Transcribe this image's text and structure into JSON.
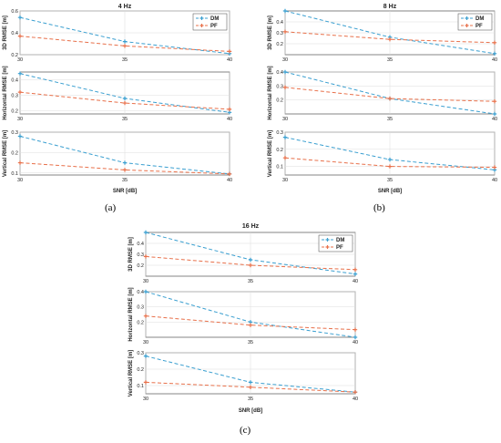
{
  "colors": {
    "dm": "#3a9fd0",
    "pf": "#e8704a"
  },
  "captions": [
    "(a)",
    "(b)",
    "(c)"
  ],
  "chart_data": [
    {
      "type": "line",
      "title": "4 Hz",
      "xlabel": "SNR [dB]",
      "legend": "top-right",
      "x": [
        30,
        35,
        40
      ],
      "x_ticks": [
        "30",
        "35",
        "40"
      ],
      "series_names": [
        "DM",
        "PF"
      ],
      "subplots": [
        {
          "ylabel": "3D RMSE [m]",
          "ylim": [
            0.2,
            0.6
          ],
          "y_ticks": [
            "0.2",
            "0.4",
            "0.6"
          ],
          "yvals": [
            0.2,
            0.4,
            0.6
          ],
          "series": [
            {
              "values": [
                0.54,
                0.32,
                0.21
              ]
            },
            {
              "values": [
                0.37,
                0.28,
                0.23
              ]
            }
          ]
        },
        {
          "ylabel": "Horizontal RMSE [m]",
          "ylim": [
            0.18,
            0.45
          ],
          "y_ticks": [
            "0.2",
            "0.3",
            "0.4"
          ],
          "yvals": [
            0.2,
            0.3,
            0.4
          ],
          "series": [
            {
              "values": [
                0.44,
                0.28,
                0.19
              ]
            },
            {
              "values": [
                0.32,
                0.25,
                0.21
              ]
            }
          ]
        },
        {
          "ylabel": "Vertical RMSE [m]",
          "ylim": [
            0.09,
            0.3
          ],
          "y_ticks": [
            "0.1",
            "0.2",
            "0.3"
          ],
          "yvals": [
            0.1,
            0.2,
            0.3
          ],
          "series": [
            {
              "values": [
                0.28,
                0.15,
                0.095
              ]
            },
            {
              "values": [
                0.15,
                0.115,
                0.095
              ]
            }
          ]
        }
      ]
    },
    {
      "type": "line",
      "title": "8 Hz",
      "xlabel": "SNR [dB]",
      "legend": "top-right",
      "x": [
        30,
        35,
        40
      ],
      "x_ticks": [
        "30",
        "35",
        "40"
      ],
      "series_names": [
        "DM",
        "PF"
      ],
      "subplots": [
        {
          "ylabel": "3D RMSE [m]",
          "ylim": [
            0.1,
            0.5
          ],
          "y_ticks": [
            "0.2",
            "0.3",
            "0.4"
          ],
          "yvals": [
            0.2,
            0.3,
            0.4
          ],
          "series": [
            {
              "values": [
                0.5,
                0.26,
                0.11
              ]
            },
            {
              "values": [
                0.31,
                0.24,
                0.21
              ]
            }
          ]
        },
        {
          "ylabel": "Horizontal RMSE [m]",
          "ylim": [
            0.1,
            0.4
          ],
          "y_ticks": [
            "0.2",
            "0.3",
            "0.4"
          ],
          "yvals": [
            0.2,
            0.3,
            0.4
          ],
          "series": [
            {
              "values": [
                0.4,
                0.21,
                0.1
              ]
            },
            {
              "values": [
                0.29,
                0.21,
                0.19
              ]
            }
          ]
        },
        {
          "ylabel": "Vertical RMSE [m]",
          "ylim": [
            0.05,
            0.3
          ],
          "y_ticks": [
            "0.1",
            "0.2",
            "0.3"
          ],
          "yvals": [
            0.1,
            0.2,
            0.3
          ],
          "series": [
            {
              "values": [
                0.27,
                0.14,
                0.08
              ]
            },
            {
              "values": [
                0.15,
                0.1,
                0.095
              ]
            }
          ]
        }
      ]
    },
    {
      "type": "line",
      "title": "16 Hz",
      "xlabel": "SNR [dB]",
      "legend": "top-right",
      "x": [
        30,
        35,
        40
      ],
      "x_ticks": [
        "30",
        "35",
        "40"
      ],
      "series_names": [
        "DM",
        "PF"
      ],
      "subplots": [
        {
          "ylabel": "3D RMSE [m]",
          "ylim": [
            0.1,
            0.5
          ],
          "y_ticks": [
            "0.2",
            "0.3",
            "0.4"
          ],
          "yvals": [
            0.2,
            0.3,
            0.4
          ],
          "series": [
            {
              "values": [
                0.5,
                0.25,
                0.12
              ]
            },
            {
              "values": [
                0.28,
                0.2,
                0.16
              ]
            }
          ]
        },
        {
          "ylabel": "Horizontal RMSE [m]",
          "ylim": [
            0.1,
            0.4
          ],
          "y_ticks": [
            "0.2",
            "0.3",
            "0.4"
          ],
          "yvals": [
            0.2,
            0.3,
            0.4
          ],
          "series": [
            {
              "values": [
                0.4,
                0.2,
                0.1
              ]
            },
            {
              "values": [
                0.24,
                0.18,
                0.15
              ]
            }
          ]
        },
        {
          "ylabel": "Vertical RMSE [m]",
          "ylim": [
            0.05,
            0.3
          ],
          "y_ticks": [
            "0.1",
            "0.2",
            "0.3"
          ],
          "yvals": [
            0.1,
            0.2,
            0.3
          ],
          "series": [
            {
              "values": [
                0.28,
                0.12,
                0.06
              ]
            },
            {
              "values": [
                0.12,
                0.09,
                0.06
              ]
            }
          ]
        }
      ]
    }
  ]
}
